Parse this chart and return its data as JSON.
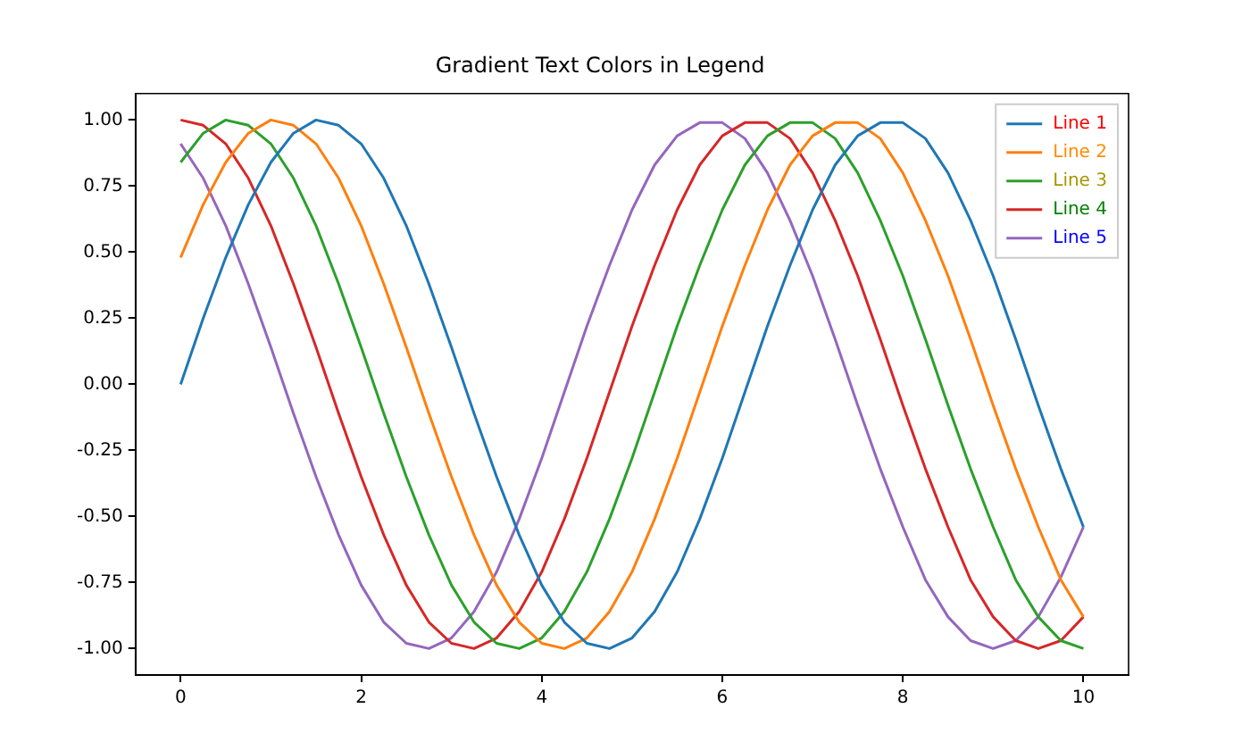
{
  "chart_data": {
    "type": "line",
    "title": "Gradient Text Colors in Legend",
    "x": [
      0,
      0.25,
      0.5,
      0.75,
      1,
      1.25,
      1.5,
      1.75,
      2,
      2.25,
      2.5,
      2.75,
      3,
      3.25,
      3.5,
      3.75,
      4,
      4.25,
      4.5,
      4.75,
      5,
      5.25,
      5.5,
      5.75,
      6,
      6.25,
      6.5,
      6.75,
      7,
      7.25,
      7.5,
      7.75,
      8,
      8.25,
      8.5,
      8.75,
      9,
      9.25,
      9.5,
      9.75,
      10
    ],
    "series": [
      {
        "name": "Line 1",
        "color": "#1f77b4",
        "values": [
          0.0,
          0.25,
          0.48,
          0.68,
          0.84,
          0.95,
          1.0,
          0.98,
          0.91,
          0.78,
          0.6,
          0.38,
          0.14,
          -0.11,
          -0.35,
          -0.57,
          -0.76,
          -0.9,
          -0.98,
          -1.0,
          -0.96,
          -0.86,
          -0.71,
          -0.51,
          -0.28,
          -0.03,
          0.22,
          0.45,
          0.66,
          0.83,
          0.94,
          0.99,
          0.99,
          0.93,
          0.8,
          0.62,
          0.41,
          0.17,
          -0.08,
          -0.32,
          -0.54
        ]
      },
      {
        "name": "Line 2",
        "color": "#ff7f0e",
        "values": [
          0.48,
          0.68,
          0.84,
          0.95,
          1.0,
          0.98,
          0.91,
          0.78,
          0.6,
          0.38,
          0.14,
          -0.11,
          -0.35,
          -0.57,
          -0.76,
          -0.9,
          -0.98,
          -1.0,
          -0.96,
          -0.86,
          -0.71,
          -0.51,
          -0.28,
          -0.03,
          0.22,
          0.45,
          0.66,
          0.83,
          0.94,
          0.99,
          0.99,
          0.93,
          0.8,
          0.62,
          0.41,
          0.17,
          -0.08,
          -0.32,
          -0.54,
          -0.74,
          -0.88
        ]
      },
      {
        "name": "Line 3",
        "color": "#2ca02c",
        "values": [
          0.84,
          0.95,
          1.0,
          0.98,
          0.91,
          0.78,
          0.6,
          0.38,
          0.14,
          -0.11,
          -0.35,
          -0.57,
          -0.76,
          -0.9,
          -0.98,
          -1.0,
          -0.96,
          -0.86,
          -0.71,
          -0.51,
          -0.28,
          -0.03,
          0.22,
          0.45,
          0.66,
          0.83,
          0.94,
          0.99,
          0.99,
          0.93,
          0.8,
          0.62,
          0.41,
          0.17,
          -0.08,
          -0.32,
          -0.54,
          -0.74,
          -0.88,
          -0.97,
          -1.0
        ]
      },
      {
        "name": "Line 4",
        "color": "#d62728",
        "values": [
          1.0,
          0.98,
          0.91,
          0.78,
          0.6,
          0.38,
          0.14,
          -0.11,
          -0.35,
          -0.57,
          -0.76,
          -0.9,
          -0.98,
          -1.0,
          -0.96,
          -0.86,
          -0.71,
          -0.51,
          -0.28,
          -0.03,
          0.22,
          0.45,
          0.66,
          0.83,
          0.94,
          0.99,
          0.99,
          0.93,
          0.8,
          0.62,
          0.41,
          0.17,
          -0.08,
          -0.32,
          -0.54,
          -0.74,
          -0.88,
          -0.97,
          -1.0,
          -0.97,
          -0.88
        ]
      },
      {
        "name": "Line 5",
        "color": "#9467bd",
        "values": [
          0.91,
          0.78,
          0.6,
          0.38,
          0.14,
          -0.11,
          -0.35,
          -0.57,
          -0.76,
          -0.9,
          -0.98,
          -1.0,
          -0.96,
          -0.86,
          -0.71,
          -0.51,
          -0.28,
          -0.03,
          0.22,
          0.45,
          0.66,
          0.83,
          0.94,
          0.99,
          0.99,
          0.93,
          0.8,
          0.62,
          0.41,
          0.17,
          -0.08,
          -0.32,
          -0.54,
          -0.74,
          -0.88,
          -0.97,
          -1.0,
          -0.97,
          -0.88,
          -0.73,
          -0.54
        ]
      }
    ],
    "xlim": [
      -0.5,
      10.5
    ],
    "xticks": [
      0,
      2,
      4,
      6,
      8,
      10
    ],
    "ylim": [
      -1.1,
      1.1
    ],
    "yticks": [
      {
        "value": -1,
        "label": "-1.00"
      },
      {
        "value": -0.75,
        "label": "-0.75"
      },
      {
        "value": -0.5,
        "label": "-0.50"
      },
      {
        "value": -0.25,
        "label": "-0.25"
      },
      {
        "value": 0,
        "label": "0.00"
      },
      {
        "value": 0.25,
        "label": "0.25"
      },
      {
        "value": 0.5,
        "label": "0.50"
      },
      {
        "value": 0.75,
        "label": "0.75"
      },
      {
        "value": 1,
        "label": "1.00"
      }
    ],
    "grid": false,
    "legend": "top right",
    "marker": "none",
    "line_style": "solid"
  }
}
